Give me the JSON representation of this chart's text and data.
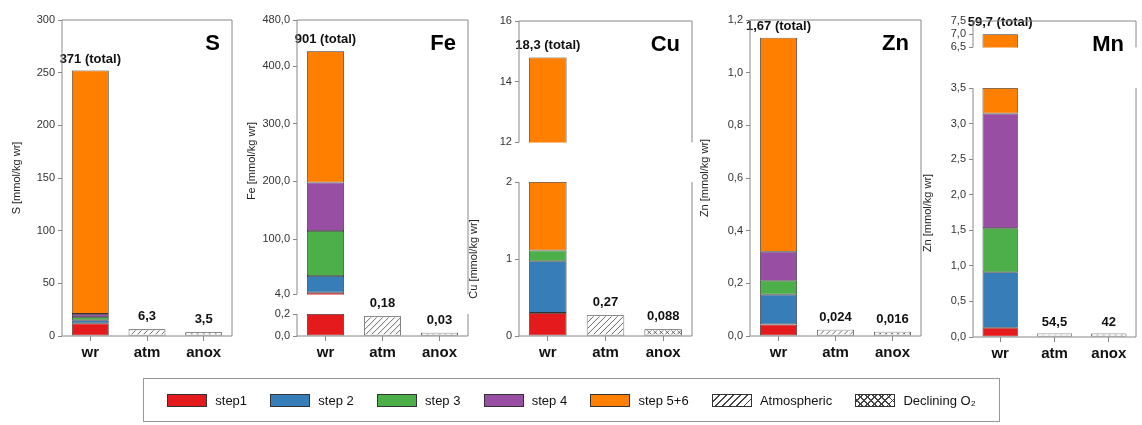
{
  "chart_data": [
    {
      "type": "bar",
      "title": "S",
      "ylabel": "S [mmol/kg wr]",
      "categories": [
        "wr",
        "atm",
        "anox"
      ],
      "stacked": true,
      "legend": "bottom",
      "ylim": [
        0,
        300
      ],
      "yticks": [
        0,
        50,
        100,
        150,
        200,
        250,
        300
      ],
      "annotations": [
        {
          "text": "371 (total)",
          "x": "wr",
          "y": 252
        }
      ],
      "series": [
        {
          "name": "step1",
          "color": "#e41a1c",
          "values": [
            12,
            null,
            null
          ]
        },
        {
          "name": "step 2",
          "color": "#377eb8",
          "values": [
            3,
            null,
            null
          ]
        },
        {
          "name": "step 3",
          "color": "#4daf4a",
          "values": [
            3,
            null,
            null
          ]
        },
        {
          "name": "step 4",
          "color": "#984ea3",
          "values": [
            3,
            null,
            null
          ]
        },
        {
          "name": "step 5+6",
          "color": "#ff7f00",
          "values": [
            231,
            null,
            null
          ]
        },
        {
          "name": "Atmospheric",
          "color": "#ffffff",
          "values": [
            null,
            6.3,
            null
          ],
          "value_labels": [
            null,
            "6,3",
            null
          ]
        },
        {
          "name": "Declining O₂",
          "color": "#ffffff",
          "values": [
            null,
            null,
            3.5
          ],
          "value_labels": [
            null,
            null,
            "3,5"
          ]
        }
      ]
    },
    {
      "type": "bar",
      "title": "Fe",
      "ylabel": "Fe [mmol/kg wr]",
      "categories": [
        "wr",
        "atm",
        "anox"
      ],
      "stacked": true,
      "tick_labels": "y",
      "ylim": [
        4,
        480
      ],
      "yticks": [
        {
          "value": 4,
          "label": "4,0"
        },
        {
          "value": 100,
          "label": "100,0"
        },
        {
          "value": 200,
          "label": "200,0"
        },
        {
          "value": 300,
          "label": "300,0"
        },
        {
          "value": 400,
          "label": "400,0"
        },
        {
          "value": 480,
          "label": "480,0"
        }
      ],
      "annotations": [
        {
          "text": "901 (total)",
          "x": "wr",
          "y": 426
        }
      ],
      "series": [
        {
          "color": "#e41a1c",
          "values": [
            7,
            null,
            null
          ]
        },
        {
          "color": "#377eb8",
          "values": [
            29,
            null,
            null
          ]
        },
        {
          "color": "#4daf4a",
          "values": [
            78,
            null,
            null
          ]
        },
        {
          "color": "#984ea3",
          "values": [
            84,
            null,
            null
          ]
        },
        {
          "color": "#ff7f00",
          "values": [
            228,
            null,
            null
          ]
        }
      ]
    },
    {
      "type": "bar",
      "categories": [
        "wr",
        "atm",
        "anox"
      ],
      "stacked": true,
      "ylim": [
        0,
        0.2
      ],
      "yticks": [
        {
          "value": 0,
          "label": "0,0"
        },
        {
          "value": 0.2,
          "label": "0,2"
        }
      ],
      "series": [
        {
          "color": "#e41a1c",
          "values": [
            0.2,
            null,
            null
          ]
        },
        {
          "color": "#ffffff",
          "values": [
            null,
            0.18,
            null
          ],
          "value_labels": [
            null,
            "0,18",
            null
          ]
        },
        {
          "color": "#ffffff",
          "values": [
            null,
            null,
            0.03
          ],
          "value_labels": [
            null,
            null,
            "0,03"
          ]
        }
      ]
    },
    {
      "type": "bar",
      "title": "Cu",
      "categories": [
        "wr",
        "atm",
        "anox"
      ],
      "tick_labels": "y",
      "ylim": [
        12,
        16
      ],
      "yticks": [
        12,
        14,
        16
      ],
      "annotations": [
        {
          "text": "18,3 (total)",
          "x": "wr",
          "y": 14.8
        }
      ],
      "series": [
        {
          "color": "#ff7f00",
          "values": [
            14.8,
            null,
            null
          ]
        }
      ]
    },
    {
      "type": "bar",
      "ylabel": "Cu [mmol/kg wr]",
      "categories": [
        "wr",
        "atm",
        "anox"
      ],
      "stacked": true,
      "ylim": [
        0,
        2
      ],
      "yticks": [
        0,
        1,
        2
      ],
      "series": [
        {
          "color": "#e41a1c",
          "values": [
            0.3,
            null,
            null
          ]
        },
        {
          "color": "#377eb8",
          "values": [
            0.67,
            null,
            null
          ]
        },
        {
          "color": "#4daf4a",
          "values": [
            0.14,
            null,
            null
          ]
        },
        {
          "color": "#ff7f00",
          "values": [
            0.89,
            null,
            null
          ]
        },
        {
          "color": "#ffffff",
          "values": [
            null,
            0.27,
            null
          ],
          "value_labels": [
            null,
            "0,27",
            null
          ]
        },
        {
          "color": "#ffffff",
          "values": [
            null,
            null,
            0.088
          ],
          "value_labels": [
            null,
            null,
            "0,088"
          ]
        }
      ]
    },
    {
      "type": "bar",
      "title": "Zn",
      "ylabel": "Zn [mmol/kg wr]",
      "categories": [
        "wr",
        "atm",
        "anox"
      ],
      "stacked": true,
      "ylim": [
        0,
        1.2
      ],
      "yticks": [
        {
          "value": 0,
          "label": "0,0"
        },
        {
          "value": 0.2,
          "label": "0,2"
        },
        {
          "value": 0.4,
          "label": "0,4"
        },
        {
          "value": 0.6,
          "label": "0,6"
        },
        {
          "value": 0.8,
          "label": "0,8"
        },
        {
          "value": 1,
          "label": "1,0"
        },
        {
          "value": 1.2,
          "label": "1,2"
        }
      ],
      "annotations": [
        {
          "text": "1,67 (total)",
          "x": "wr",
          "y": 1.133
        }
      ],
      "series": [
        {
          "color": "#e41a1c",
          "values": [
            0.044,
            null,
            null
          ]
        },
        {
          "color": "#377eb8",
          "values": [
            0.113,
            null,
            null
          ]
        },
        {
          "color": "#4daf4a",
          "values": [
            0.053,
            null,
            null
          ]
        },
        {
          "color": "#984ea3",
          "values": [
            0.11,
            null,
            null
          ]
        },
        {
          "color": "#ff7f00",
          "values": [
            0.813,
            null,
            null
          ]
        },
        {
          "color": "#ffffff",
          "values": [
            null,
            0.024,
            null
          ],
          "value_labels": [
            null,
            "0,024",
            null
          ]
        },
        {
          "color": "#ffffff",
          "values": [
            null,
            null,
            0.016
          ],
          "value_labels": [
            null,
            null,
            "0,016"
          ]
        }
      ]
    },
    {
      "type": "bar",
      "title": "Mn",
      "categories": [
        "wr",
        "atm",
        "anox"
      ],
      "tick_labels": "y",
      "ylim": [
        6.5,
        7.5
      ],
      "yticks": [
        {
          "value": 6.5,
          "label": "6,5"
        },
        {
          "value": 7,
          "label": "7,0"
        },
        {
          "value": 7.5,
          "label": "7,5"
        }
      ],
      "annotations": [
        {
          "text": "59,7 (total)",
          "x": "wr",
          "y": 7
        }
      ],
      "series": [
        {
          "color": "#ff7f00",
          "values": [
            7,
            null,
            null
          ]
        }
      ]
    },
    {
      "type": "bar",
      "ylabel": "Zn [mmol/kg wr]",
      "categories": [
        "wr",
        "atm",
        "anox"
      ],
      "stacked": true,
      "ylim": [
        0,
        3.5
      ],
      "yticks": [
        {
          "value": 0,
          "label": "0,0"
        },
        {
          "value": 0.5,
          "label": "0,5"
        },
        {
          "value": 1,
          "label": "1,0"
        },
        {
          "value": 1.5,
          "label": "1,5"
        },
        {
          "value": 2,
          "label": "2,0"
        },
        {
          "value": 2.5,
          "label": "2,5"
        },
        {
          "value": 3,
          "label": "3,0"
        },
        {
          "value": 3.5,
          "label": "3,5"
        }
      ],
      "annotations": [
        {
          "text": "54,5",
          "x": "atm",
          "y": 0.05
        },
        {
          "text": "42",
          "x": "anox",
          "y": 0.05
        }
      ],
      "series": [
        {
          "color": "#e41a1c",
          "values": [
            0.13,
            null,
            null
          ]
        },
        {
          "color": "#377eb8",
          "values": [
            0.78,
            null,
            null
          ]
        },
        {
          "color": "#4daf4a",
          "values": [
            0.62,
            null,
            null
          ]
        },
        {
          "color": "#984ea3",
          "values": [
            1.61,
            null,
            null
          ]
        },
        {
          "color": "#ff7f00",
          "values": [
            0.36,
            null,
            null
          ]
        },
        {
          "color": "#ffffff",
          "values": [
            null,
            0.05,
            null
          ]
        },
        {
          "color": "#ffffff",
          "values": [
            null,
            null,
            0.05
          ]
        }
      ]
    }
  ]
}
